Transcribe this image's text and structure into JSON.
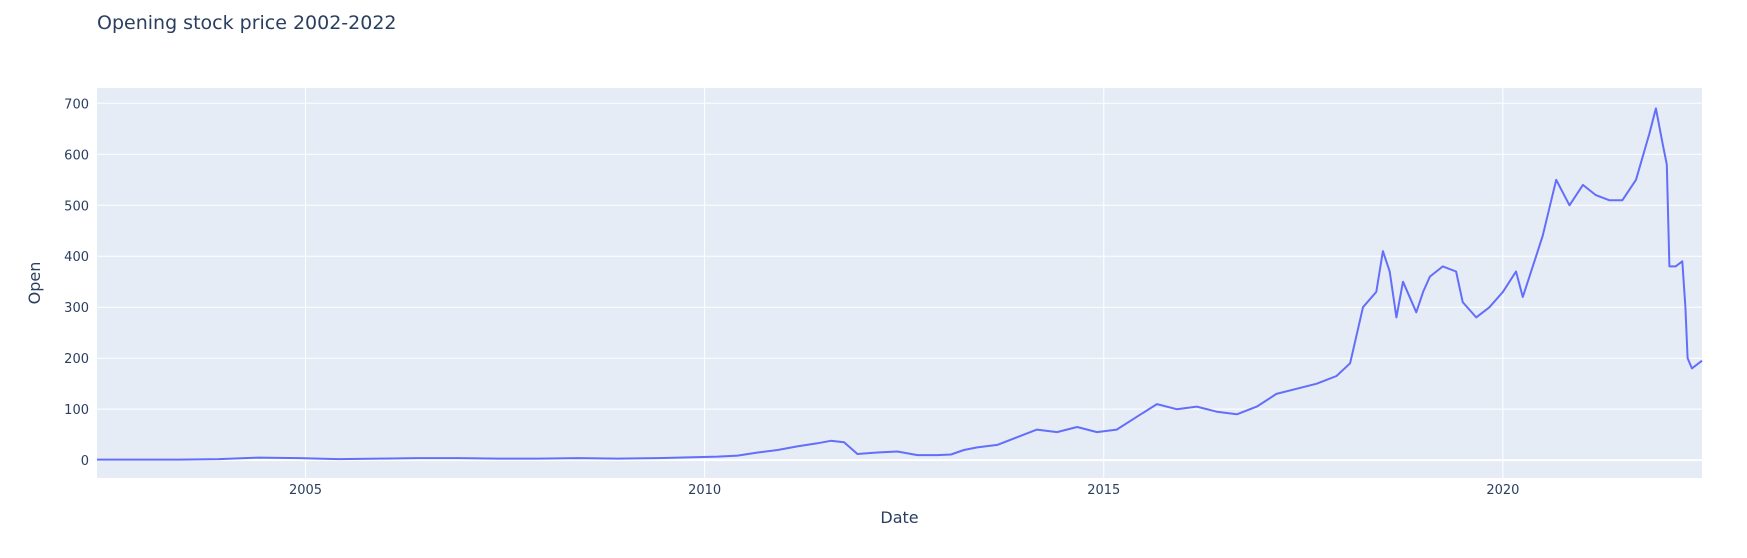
{
  "chart_data": {
    "type": "line",
    "title": "Opening stock price 2002-2022",
    "xlabel": "Date",
    "ylabel": "Open",
    "xlim": [
      "2002-05-23",
      "2022-06-30"
    ],
    "ylim": [
      -35,
      730
    ],
    "x_ticks": [
      "2005",
      "2010",
      "2015",
      "2020"
    ],
    "y_ticks": [
      0,
      100,
      200,
      300,
      400,
      500,
      600,
      700
    ],
    "grid": true,
    "legend": "none",
    "colors": {
      "line": "#636efa",
      "plot_background": "#e5ecf6",
      "grid": "#ffffff",
      "text": "#2a3f5f"
    },
    "series": [
      {
        "x": [
          "2002-05-23",
          "2002-12-01",
          "2003-06-01",
          "2003-12-01",
          "2004-06-01",
          "2004-12-01",
          "2005-06-01",
          "2005-12-01",
          "2006-06-01",
          "2006-12-01",
          "2007-06-01",
          "2007-12-01",
          "2008-06-01",
          "2008-12-01",
          "2009-06-01",
          "2009-12-01",
          "2010-03-01",
          "2010-06-01",
          "2010-09-01",
          "2010-12-01",
          "2011-03-01",
          "2011-06-01",
          "2011-08-01",
          "2011-10-01",
          "2011-12-01",
          "2012-03-01",
          "2012-06-01",
          "2012-09-01",
          "2012-12-01",
          "2013-02-01",
          "2013-04-01",
          "2013-06-01",
          "2013-09-01",
          "2013-12-01",
          "2014-03-01",
          "2014-06-01",
          "2014-09-01",
          "2014-12-01",
          "2015-03-01",
          "2015-06-01",
          "2015-09-01",
          "2015-12-01",
          "2016-03-01",
          "2016-06-01",
          "2016-09-01",
          "2016-12-01",
          "2017-03-01",
          "2017-06-01",
          "2017-09-01",
          "2017-12-01",
          "2018-02-01",
          "2018-04-01",
          "2018-06-01",
          "2018-07-01",
          "2018-08-01",
          "2018-09-01",
          "2018-10-01",
          "2018-12-01",
          "2019-01-01",
          "2019-02-01",
          "2019-04-01",
          "2019-06-01",
          "2019-07-01",
          "2019-09-01",
          "2019-11-01",
          "2020-01-01",
          "2020-03-01",
          "2020-04-01",
          "2020-06-01",
          "2020-07-01",
          "2020-09-01",
          "2020-11-01",
          "2021-01-01",
          "2021-03-01",
          "2021-05-01",
          "2021-07-01",
          "2021-09-01",
          "2021-11-01",
          "2021-12-01",
          "2022-01-01",
          "2022-01-20",
          "2022-02-01",
          "2022-03-01",
          "2022-04-01",
          "2022-04-15",
          "2022-04-25",
          "2022-05-15",
          "2022-06-30"
        ],
        "y": [
          1,
          1,
          1,
          2,
          5,
          4,
          2,
          3,
          4,
          4,
          3,
          3,
          4,
          3,
          4,
          6,
          7,
          9,
          15,
          20,
          27,
          33,
          38,
          35,
          12,
          15,
          17,
          10,
          10,
          11,
          20,
          25,
          30,
          45,
          60,
          55,
          65,
          55,
          60,
          85,
          110,
          100,
          105,
          95,
          90,
          105,
          130,
          140,
          150,
          165,
          190,
          300,
          330,
          410,
          370,
          280,
          350,
          290,
          330,
          360,
          380,
          370,
          310,
          280,
          300,
          330,
          370,
          320,
          400,
          440,
          550,
          500,
          540,
          520,
          510,
          510,
          550,
          640,
          690,
          620,
          580,
          380,
          380,
          390,
          300,
          200,
          180,
          195
        ]
      }
    ]
  }
}
